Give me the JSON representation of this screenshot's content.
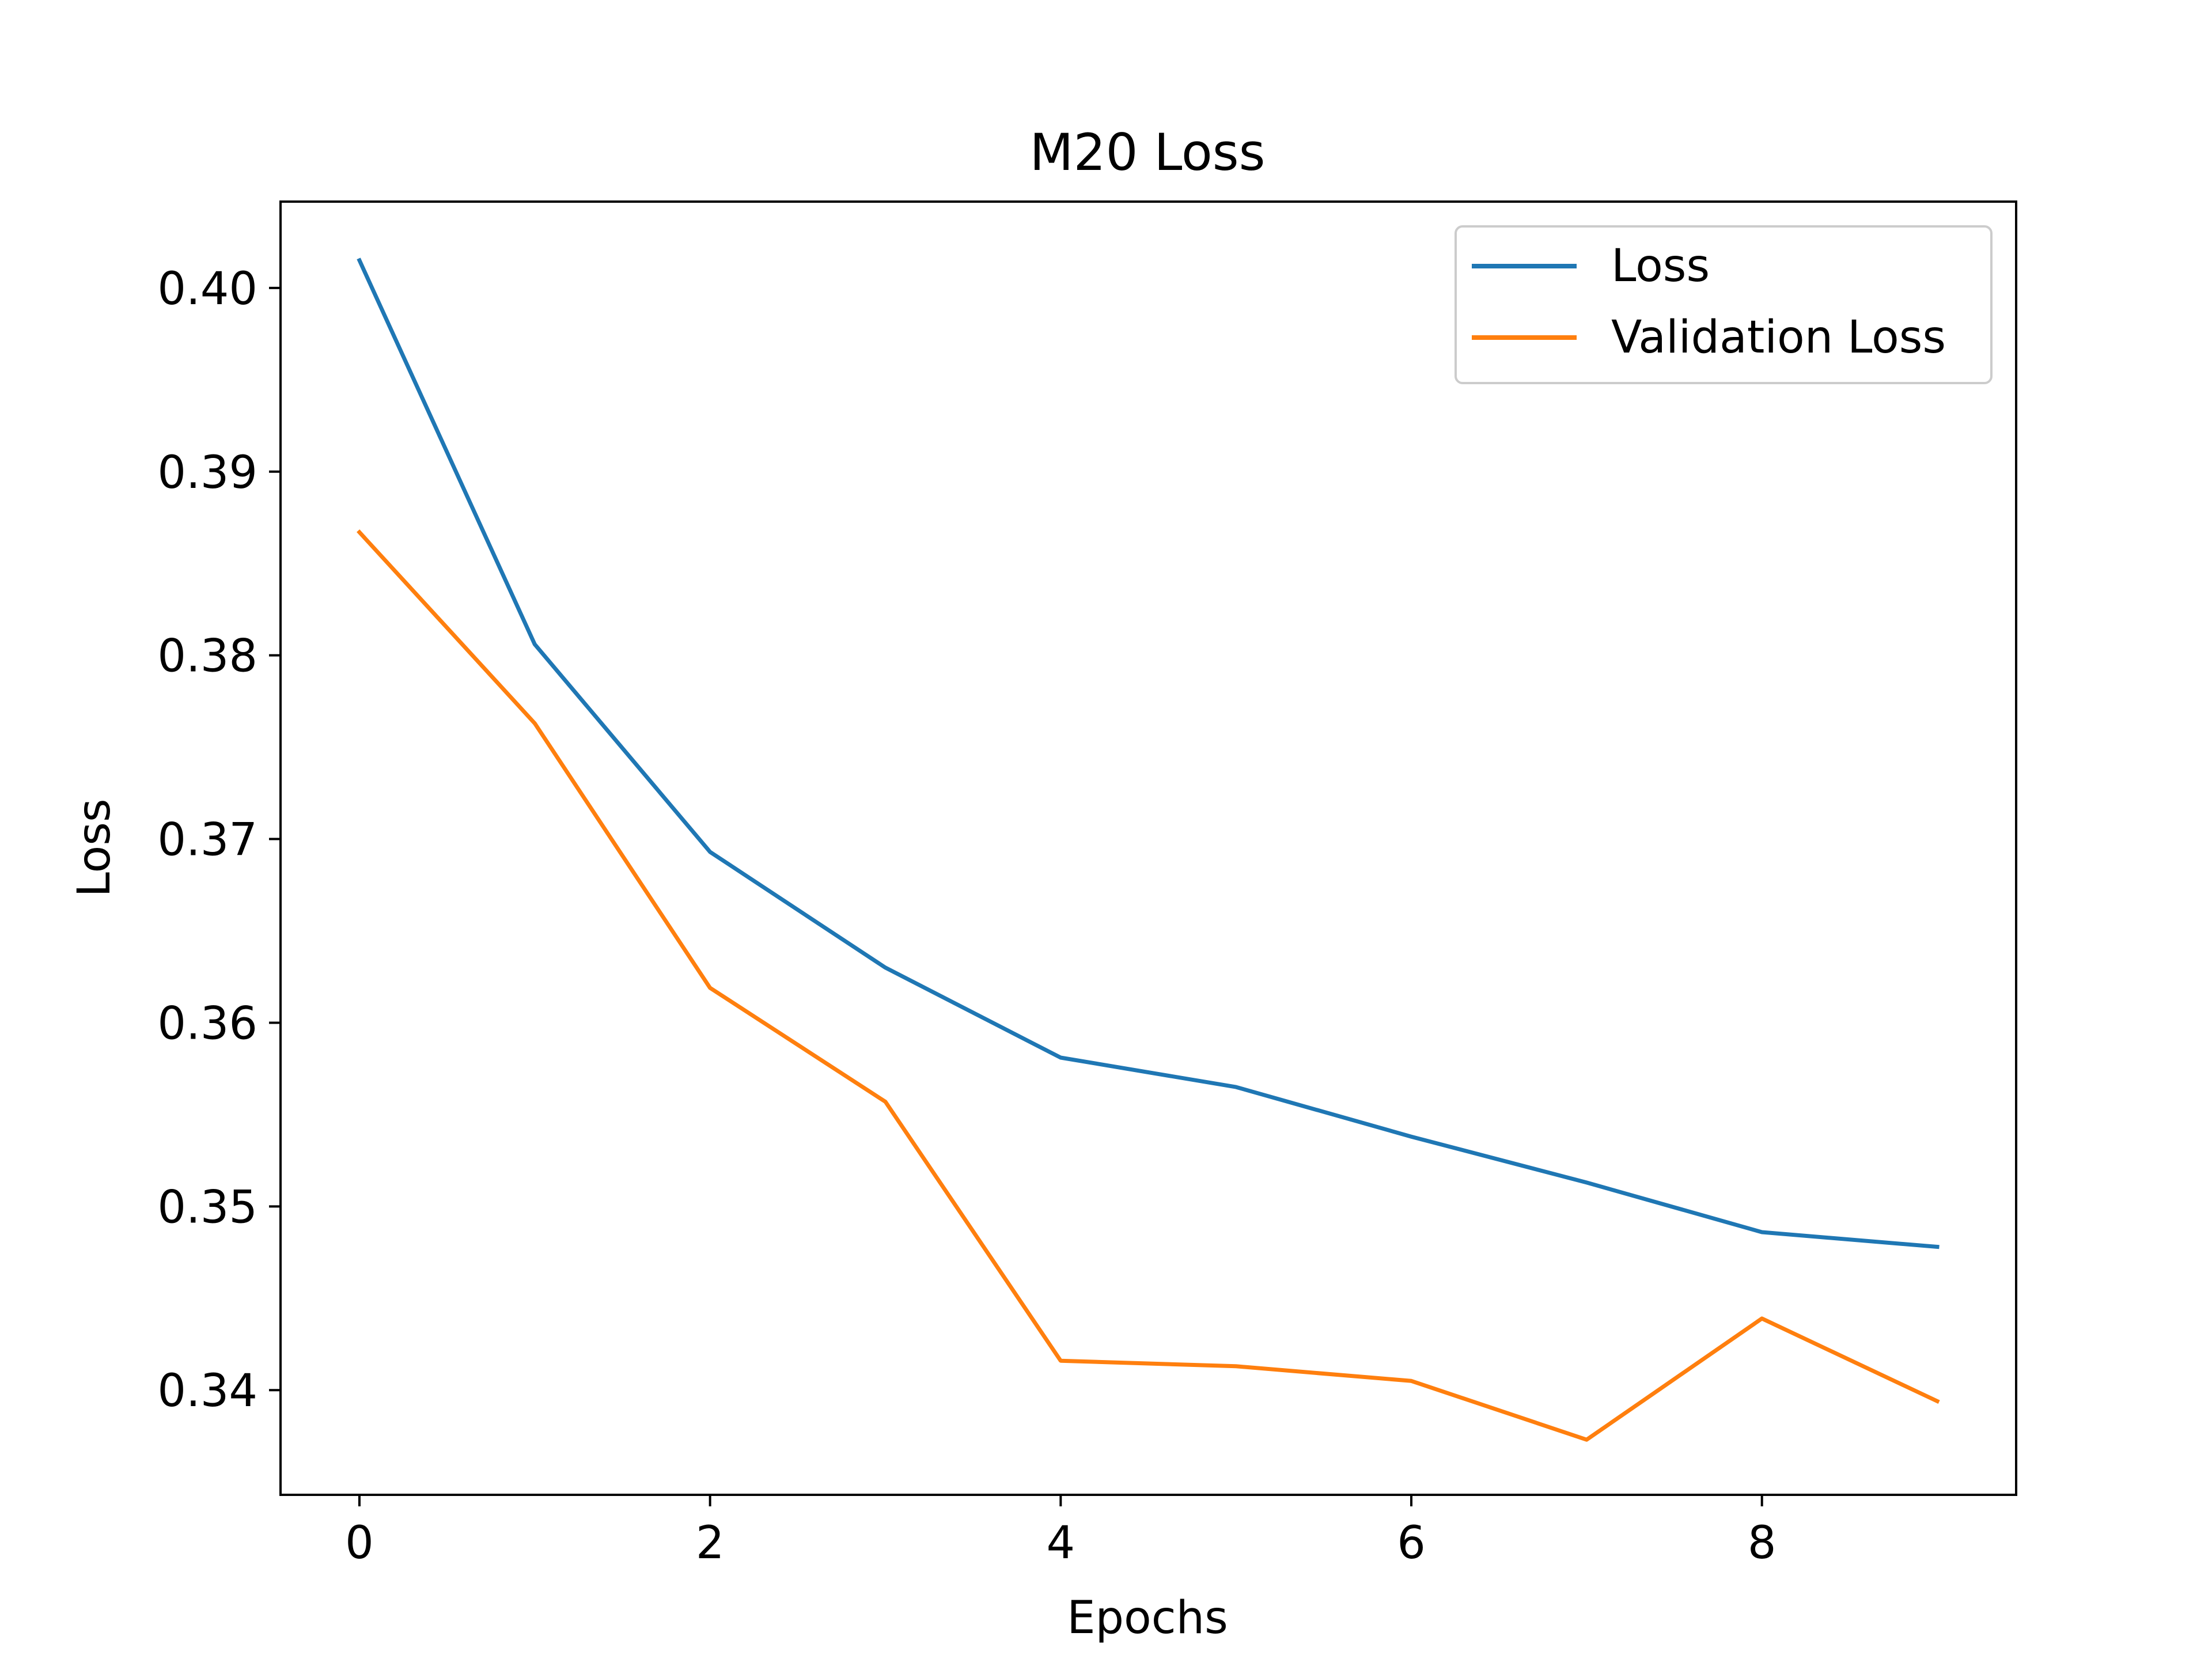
{
  "chart_data": {
    "type": "line",
    "title": "M20 Loss",
    "xlabel": "Epochs",
    "ylabel": "Loss",
    "x": [
      0,
      1,
      2,
      3,
      4,
      5,
      6,
      7,
      8,
      9
    ],
    "xlim": [
      -0.45,
      9.45
    ],
    "ylim": [
      0.3343,
      0.4047
    ],
    "xticks": [
      0,
      2,
      4,
      6,
      8
    ],
    "xtick_labels": [
      "0",
      "2",
      "4",
      "6",
      "8"
    ],
    "yticks": [
      0.34,
      0.35,
      0.36,
      0.37,
      0.38,
      0.39,
      0.4
    ],
    "ytick_labels": [
      "0.34",
      "0.35",
      "0.36",
      "0.37",
      "0.38",
      "0.39",
      "0.40"
    ],
    "grid": false,
    "legend_position": "top-right",
    "series": [
      {
        "name": "Loss",
        "color": "#1f77b4",
        "values": [
          0.4015,
          0.3806,
          0.3693,
          0.363,
          0.3581,
          0.3565,
          0.3538,
          0.3513,
          0.3486,
          0.3478
        ]
      },
      {
        "name": "Validation Loss",
        "color": "#ff7f0e",
        "values": [
          0.3867,
          0.3763,
          0.3619,
          0.3557,
          0.3416,
          0.3413,
          0.3405,
          0.3373,
          0.3439,
          0.3394
        ]
      }
    ]
  }
}
